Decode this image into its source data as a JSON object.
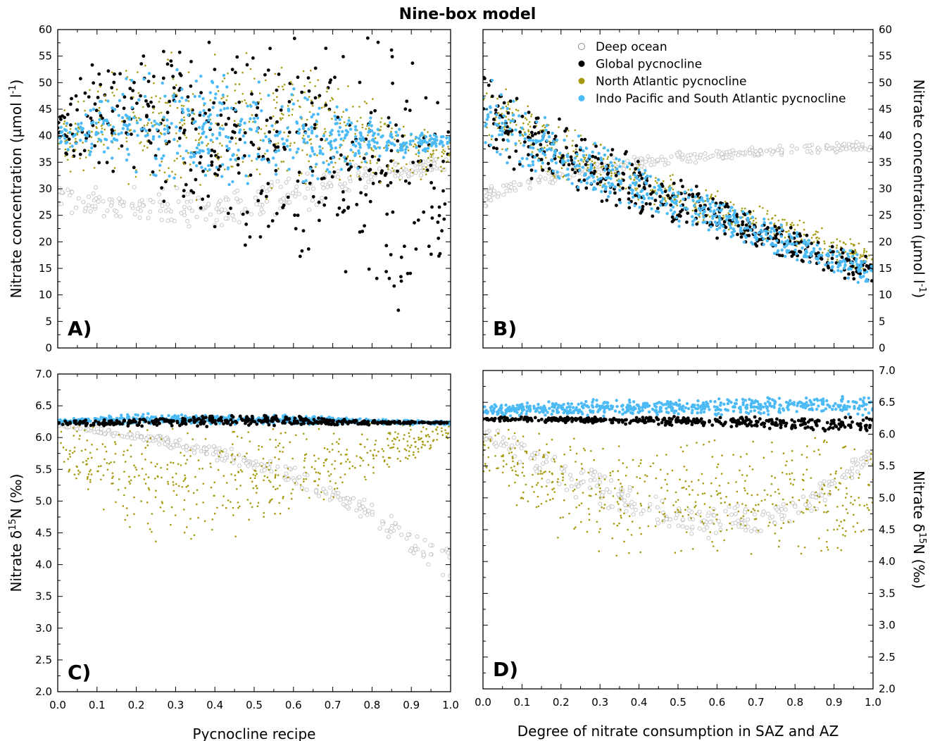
{
  "title": "Nine-box model",
  "legend": {
    "placement": "top-right of panel B",
    "entries": [
      {
        "key": "deep",
        "label": "Deep ocean",
        "marker": "open-circle",
        "color": "#bdbdbd"
      },
      {
        "key": "global",
        "label": "Global pycnocline",
        "marker": "filled-circle",
        "color": "#000000"
      },
      {
        "key": "na",
        "label": "North Atlantic pycnocline",
        "marker": "filled-circle",
        "color": "#a49a0c"
      },
      {
        "key": "ip",
        "label": "Indo Pacific and South Atlantic pycnocline",
        "marker": "filled-circle",
        "color": "#4cbaf5"
      }
    ]
  },
  "chart_data": [
    {
      "panel": "A)",
      "type": "scatter",
      "xlabel": "",
      "ylabel": "Nitrate concentration (µmol l",
      "ylabel_sup": "-1",
      "ylabel_end": ")",
      "xlim": [
        0,
        1
      ],
      "ylim": [
        0,
        60
      ],
      "xticks": [
        "0.0",
        "0.1",
        "0.2",
        "0.3",
        "0.4",
        "0.5",
        "0.6",
        "0.7",
        "0.8",
        "0.9",
        "1.0"
      ],
      "yticks": [
        "0",
        "5",
        "10",
        "15",
        "20",
        "25",
        "30",
        "35",
        "40",
        "45",
        "50",
        "55",
        "60"
      ],
      "show_xticklabels": false,
      "series": [
        {
          "key": "deep",
          "x": [
            0.0,
            0.1,
            0.2,
            0.3,
            0.4,
            0.5,
            0.6,
            0.7,
            0.8,
            0.9,
            1.0
          ],
          "y_low": [
            26,
            24,
            23,
            22,
            22,
            23,
            25,
            27,
            29,
            31,
            33
          ],
          "y_high": [
            31,
            31,
            31,
            31,
            31,
            32,
            33,
            34,
            35,
            36,
            37
          ]
        },
        {
          "key": "global",
          "x": [
            0.0,
            0.1,
            0.2,
            0.3,
            0.4,
            0.5,
            0.6,
            0.7,
            0.8,
            0.9,
            1.0
          ],
          "y_low": [
            36,
            31,
            27,
            24,
            21,
            17,
            12,
            8,
            6,
            6,
            12
          ],
          "y_high": [
            46,
            56,
            60,
            60,
            60,
            60,
            60,
            60,
            60,
            57,
            50
          ]
        },
        {
          "key": "na",
          "x": [
            0.0,
            0.1,
            0.2,
            0.3,
            0.4,
            0.5,
            0.6,
            0.7,
            0.8,
            0.9,
            1.0
          ],
          "y_low": [
            33,
            30,
            28,
            27,
            26,
            27,
            28,
            29,
            30,
            31,
            32
          ],
          "y_high": [
            44,
            53,
            57,
            58,
            58,
            57,
            55,
            52,
            48,
            44,
            40
          ]
        },
        {
          "key": "ip",
          "x": [
            0.0,
            0.1,
            0.2,
            0.3,
            0.4,
            0.5,
            0.6,
            0.7,
            0.8,
            0.9,
            1.0
          ],
          "y_low": [
            38,
            35,
            32,
            30,
            29,
            29,
            30,
            32,
            34,
            36,
            38
          ],
          "y_high": [
            42,
            48,
            52,
            53,
            53,
            52,
            50,
            47,
            44,
            41,
            40
          ]
        }
      ]
    },
    {
      "panel": "B)",
      "type": "scatter",
      "xlabel": "",
      "ylabel": "Nitrate concentration (µmol l",
      "ylabel_sup": "-1",
      "ylabel_end": ")",
      "xlim": [
        0,
        1
      ],
      "ylim": [
        0,
        60
      ],
      "xticks": [
        "0.0",
        "0.1",
        "0.2",
        "0.3",
        "0.4",
        "0.5",
        "0.6",
        "0.7",
        "0.8",
        "0.9",
        "1.0"
      ],
      "yticks": [
        "0",
        "5",
        "10",
        "15",
        "20",
        "25",
        "30",
        "35",
        "40",
        "45",
        "50",
        "55",
        "60"
      ],
      "show_xticklabels": false,
      "series": [
        {
          "key": "deep",
          "x": [
            0.0,
            0.1,
            0.2,
            0.3,
            0.4,
            0.5,
            0.6,
            0.7,
            0.8,
            0.9,
            1.0
          ],
          "y_low": [
            26,
            29,
            31,
            32.5,
            33.5,
            34.5,
            35.2,
            35.8,
            36.2,
            36.6,
            37
          ],
          "y_high": [
            31,
            33,
            34.5,
            35.5,
            36.3,
            37,
            37.6,
            38,
            38.4,
            38.8,
            39
          ]
        },
        {
          "key": "global",
          "x": [
            0.0,
            0.1,
            0.2,
            0.3,
            0.4,
            0.5,
            0.6,
            0.7,
            0.8,
            0.9,
            1.0
          ],
          "y_low": [
            36,
            32.5,
            29.5,
            27,
            24.5,
            22,
            20,
            17.5,
            15.5,
            13,
            11
          ],
          "y_high": [
            54,
            48.5,
            44,
            40,
            36,
            32.5,
            29,
            26,
            23,
            20,
            18
          ]
        },
        {
          "key": "na",
          "x": [
            0.0,
            0.1,
            0.2,
            0.3,
            0.4,
            0.5,
            0.6,
            0.7,
            0.8,
            0.9,
            1.0
          ],
          "y_low": [
            38,
            34.5,
            31.5,
            29,
            26.5,
            24,
            22,
            20,
            18,
            16,
            14
          ],
          "y_high": [
            52,
            47,
            43,
            39.5,
            36,
            33,
            30,
            27.5,
            25,
            22,
            19
          ]
        },
        {
          "key": "ip",
          "x": [
            0.0,
            0.1,
            0.2,
            0.3,
            0.4,
            0.5,
            0.6,
            0.7,
            0.8,
            0.9,
            1.0
          ],
          "y_low": [
            37,
            33,
            30,
            27.5,
            25,
            22.5,
            20.5,
            18,
            16,
            13.5,
            11.5
          ],
          "y_high": [
            52,
            46.5,
            42,
            38.5,
            35,
            31.5,
            28.5,
            25.5,
            22.5,
            19.5,
            17
          ]
        }
      ]
    },
    {
      "panel": "C)",
      "type": "scatter",
      "xlabel": "Pycnocline recipe",
      "ylabel": "Nitrate δ",
      "ylabel_sup": "15",
      "ylabel_end": "N (‰)",
      "xlim": [
        0,
        1
      ],
      "ylim": [
        2,
        7
      ],
      "xticks": [
        "0.0",
        "0.1",
        "0.2",
        "0.3",
        "0.4",
        "0.5",
        "0.6",
        "0.7",
        "0.8",
        "0.9",
        "1.0"
      ],
      "yticks": [
        "2.0",
        "2.5",
        "3.0",
        "3.5",
        "4.0",
        "4.5",
        "5.0",
        "5.5",
        "6.0",
        "6.5",
        "7.0"
      ],
      "show_xticklabels": true,
      "series": [
        {
          "key": "deep",
          "x": [
            0.0,
            0.1,
            0.2,
            0.3,
            0.4,
            0.5,
            0.6,
            0.7,
            0.8,
            0.9,
            1.0
          ],
          "y_low": [
            6.15,
            6.05,
            5.95,
            5.8,
            5.65,
            5.45,
            5.2,
            4.95,
            4.6,
            4.1,
            3.6
          ],
          "y_high": [
            6.25,
            6.2,
            6.1,
            6.0,
            5.9,
            5.75,
            5.55,
            5.3,
            5.0,
            4.65,
            4.3
          ]
        },
        {
          "key": "na",
          "x": [
            0.0,
            0.1,
            0.2,
            0.3,
            0.4,
            0.5,
            0.6,
            0.7,
            0.8,
            0.9,
            1.0
          ],
          "y_low": [
            5.5,
            4.8,
            4.4,
            4.3,
            4.3,
            4.4,
            4.6,
            4.9,
            5.2,
            5.6,
            6.0
          ],
          "y_high": [
            6.25,
            6.25,
            6.25,
            6.25,
            6.25,
            6.25,
            6.25,
            6.25,
            6.25,
            6.25,
            6.25
          ]
        },
        {
          "key": "ip",
          "x": [
            0.0,
            0.1,
            0.2,
            0.3,
            0.4,
            0.5,
            0.6,
            0.7,
            0.8,
            0.9,
            1.0
          ],
          "y_low": [
            6.2,
            6.2,
            6.2,
            6.2,
            6.2,
            6.2,
            6.2,
            6.2,
            6.2,
            6.2,
            6.2
          ],
          "y_high": [
            6.28,
            6.35,
            6.38,
            6.38,
            6.38,
            6.37,
            6.35,
            6.33,
            6.3,
            6.28,
            6.26
          ]
        },
        {
          "key": "global",
          "x": [
            0.0,
            0.1,
            0.2,
            0.3,
            0.4,
            0.5,
            0.6,
            0.7,
            0.8,
            0.9,
            1.0
          ],
          "y_low": [
            6.2,
            6.18,
            6.17,
            6.17,
            6.17,
            6.17,
            6.18,
            6.19,
            6.2,
            6.21,
            6.22
          ],
          "y_high": [
            6.26,
            6.28,
            6.3,
            6.35,
            6.38,
            6.38,
            6.35,
            6.3,
            6.28,
            6.26,
            6.25
          ]
        }
      ]
    },
    {
      "panel": "D)",
      "type": "scatter",
      "xlabel": "Degree of nitrate consumption in SAZ and AZ",
      "ylabel": "Nitrate δ",
      "ylabel_sup": "15",
      "ylabel_end": "N (‰)",
      "xlim": [
        0,
        1
      ],
      "ylim": [
        2,
        7
      ],
      "xticks": [
        "0.0",
        "0.1",
        "0.2",
        "0.3",
        "0.4",
        "0.5",
        "0.6",
        "0.7",
        "0.8",
        "0.9",
        "1.0"
      ],
      "yticks": [
        "2.0",
        "2.5",
        "3.0",
        "3.5",
        "4.0",
        "4.5",
        "5.0",
        "5.5",
        "6.0",
        "6.5",
        "7.0"
      ],
      "show_xticklabels": true,
      "series": [
        {
          "key": "deep",
          "x": [
            0.0,
            0.1,
            0.2,
            0.3,
            0.4,
            0.5,
            0.6,
            0.7,
            0.8,
            0.9,
            1.0
          ],
          "y_low": [
            5.9,
            5.5,
            5.1,
            4.8,
            4.55,
            4.4,
            4.35,
            4.4,
            4.6,
            5.0,
            5.6
          ],
          "y_high": [
            6.15,
            5.95,
            5.7,
            5.45,
            5.2,
            5.0,
            4.9,
            4.9,
            5.05,
            5.4,
            5.9
          ]
        },
        {
          "key": "na",
          "x": [
            0.0,
            0.1,
            0.2,
            0.3,
            0.4,
            0.5,
            0.6,
            0.7,
            0.8,
            0.9,
            1.0
          ],
          "y_low": [
            5.3,
            4.7,
            4.3,
            4.1,
            4.0,
            4.0,
            4.0,
            4.0,
            4.0,
            4.0,
            4.0
          ],
          "y_high": [
            6.15,
            6.15,
            6.12,
            6.1,
            6.08,
            6.07,
            6.05,
            6.05,
            6.05,
            6.05,
            6.05
          ]
        },
        {
          "key": "ip",
          "x": [
            0.0,
            0.1,
            0.2,
            0.3,
            0.4,
            0.5,
            0.6,
            0.7,
            0.8,
            0.9,
            1.0
          ],
          "y_low": [
            6.28,
            6.28,
            6.28,
            6.28,
            6.28,
            6.28,
            6.28,
            6.28,
            6.28,
            6.28,
            6.28
          ],
          "y_high": [
            6.45,
            6.5,
            6.53,
            6.55,
            6.56,
            6.57,
            6.58,
            6.58,
            6.6,
            6.6,
            6.62
          ]
        },
        {
          "key": "global",
          "x": [
            0.0,
            0.1,
            0.2,
            0.3,
            0.4,
            0.5,
            0.6,
            0.7,
            0.8,
            0.9,
            1.0
          ],
          "y_low": [
            6.2,
            6.19,
            6.18,
            6.17,
            6.15,
            6.13,
            6.11,
            6.09,
            6.06,
            6.03,
            6.0
          ],
          "y_high": [
            6.28,
            6.28,
            6.28,
            6.28,
            6.28,
            6.28,
            6.28,
            6.28,
            6.28,
            6.28,
            6.28
          ]
        }
      ]
    }
  ]
}
